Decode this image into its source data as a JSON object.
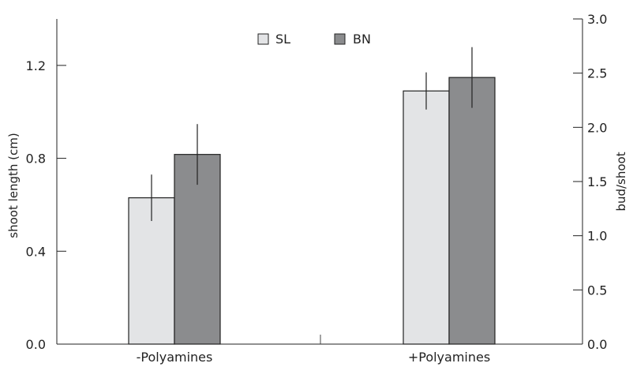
{
  "chart_data": {
    "type": "bar",
    "categories": [
      "-Polyamines",
      "+Polyamines"
    ],
    "series": [
      {
        "name": "SL",
        "axis": "left",
        "color": "#e3e4e6",
        "values": [
          0.63,
          1.09
        ],
        "error": [
          0.1,
          0.08
        ]
      },
      {
        "name": "BN",
        "axis": "right",
        "color": "#8b8c8e",
        "values": [
          1.75,
          2.46
        ],
        "error": [
          0.28,
          0.28
        ]
      }
    ],
    "ylabel": "shoot length (cm)",
    "ylabel_right": "bud/shoot",
    "ylim": [
      0,
      1.4
    ],
    "ylim_right": [
      0,
      3.0
    ],
    "yticks": [
      "0.0",
      "0.4",
      "0.8",
      "1.2"
    ],
    "yticks_right": [
      "0.0",
      "0.5",
      "1.0",
      "1.5",
      "2.0",
      "2.5",
      "3.0"
    ],
    "legend_position": "top-center",
    "grid": false
  }
}
